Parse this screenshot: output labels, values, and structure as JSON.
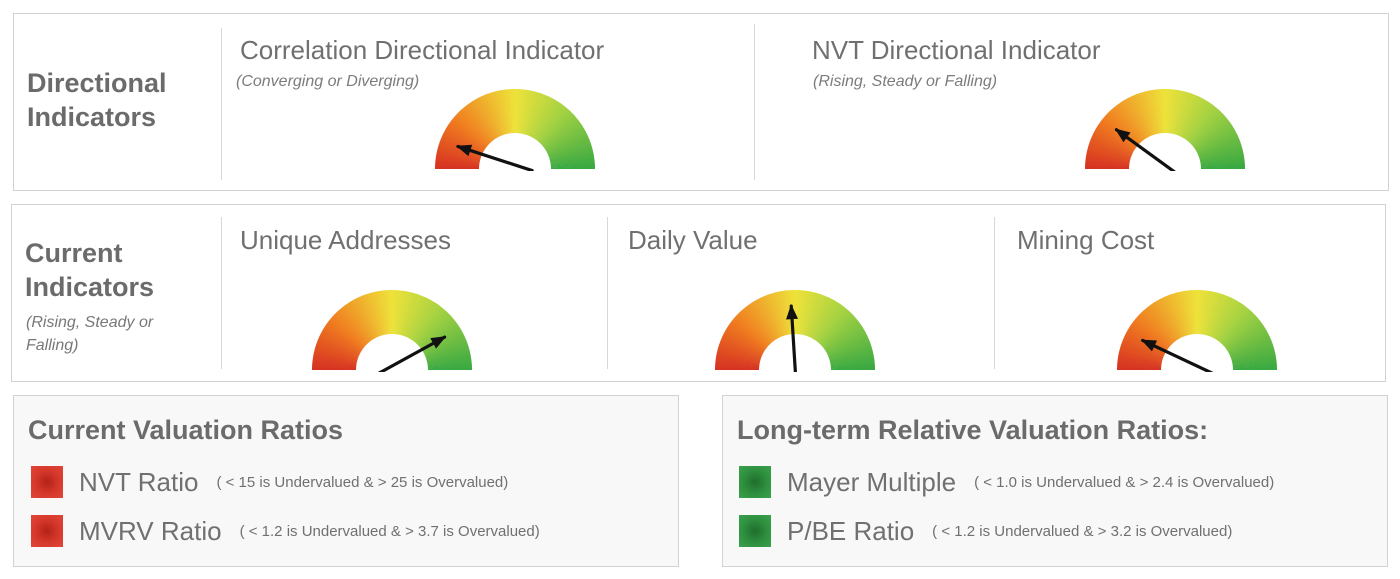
{
  "colors": {
    "red": "#d7392c",
    "orange": "#f08a1c",
    "yellow": "#eee839",
    "green": "#3fae40"
  },
  "directional": {
    "section_label": "Directional Indicators",
    "indicators": [
      {
        "title": "Correlation Directional Indicator",
        "subtitle": "(Converging or Diverging)",
        "gauge_level": 0.1
      },
      {
        "title": "NVT Directional Indicator",
        "subtitle": "(Rising, Steady or Falling)",
        "gauge_level": 0.2
      }
    ]
  },
  "current": {
    "section_label": "Current Indicators",
    "section_sub": "(Rising, Steady or Falling)",
    "indicators": [
      {
        "title": "Unique Addresses",
        "gauge_level": 0.84
      },
      {
        "title": "Daily Value",
        "gauge_level": 0.48
      },
      {
        "title": "Mining Cost",
        "gauge_level": 0.14
      }
    ]
  },
  "valuation": {
    "current_title": "Current Valuation Ratios",
    "current_items": [
      {
        "name": "NVT Ratio",
        "range": "( < 15 is Undervalued  &  > 25 is Overvalued)",
        "status_color": "red"
      },
      {
        "name": "MVRV Ratio",
        "range": "( < 1.2 is Undervalued  &  > 3.7 is Overvalued)",
        "status_color": "red"
      }
    ],
    "longterm_title": "Long-term Relative Valuation Ratios:",
    "longterm_items": [
      {
        "name": "Mayer Multiple",
        "range": "( < 1.0 is Undervalued  &  > 2.4 is Overvalued)",
        "status_color": "green"
      },
      {
        "name": "P/BE Ratio",
        "range": "( < 1.2 is Undervalued  &  > 3.2 is Overvalued)",
        "status_color": "green"
      }
    ]
  }
}
